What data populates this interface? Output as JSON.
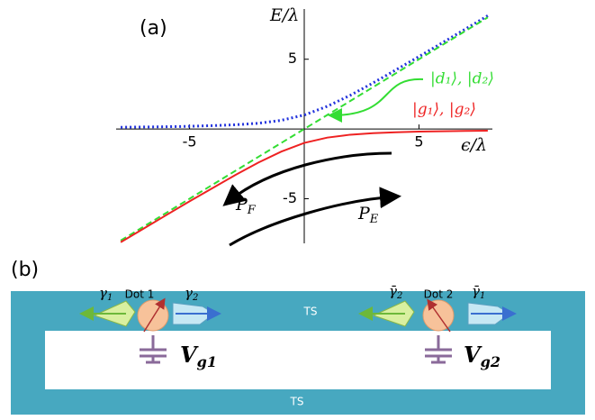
{
  "chart_data": {
    "type": "line",
    "panel_label": "(a)",
    "x_label": "ϵ/λ",
    "y_label": "E/λ",
    "x": [
      -8,
      -7,
      -6,
      -5,
      -4,
      -3,
      -2,
      -1,
      0,
      1,
      2,
      3,
      4,
      5,
      6,
      7,
      8
    ],
    "series": [
      {
        "color": "#2233dd",
        "style": "dotted",
        "values": [
          0.12,
          0.14,
          0.16,
          0.19,
          0.24,
          0.3,
          0.41,
          0.62,
          1,
          1.62,
          2.41,
          3.3,
          4.24,
          5.19,
          6.16,
          7.14,
          8.12
        ]
      },
      {
        "name": "|d₁⟩, |d₂⟩",
        "color": "#33dd33",
        "style": "dashed",
        "values": [
          -8,
          -7,
          -6,
          -5,
          -4,
          -3,
          -2,
          -1,
          0,
          1,
          2,
          3,
          4,
          5,
          6,
          7,
          8
        ]
      },
      {
        "name": "|g₁⟩, |g₂⟩",
        "color": "#ee2222",
        "style": "solid",
        "values": [
          -8.12,
          -7.14,
          -6.16,
          -5.19,
          -4.24,
          -3.3,
          -2.41,
          -1.62,
          -1,
          -0.62,
          -0.41,
          -0.3,
          -0.24,
          -0.19,
          -0.16,
          -0.14,
          -0.12
        ]
      }
    ],
    "annotations": [
      {
        "text": "P",
        "sub": "F"
      },
      {
        "text": "P",
        "sub": "E"
      }
    ],
    "xlim": [
      -8.2,
      8.2
    ],
    "ylim": [
      -8.2,
      8.6
    ],
    "xticks": [
      -5,
      5
    ],
    "yticks": [
      -5,
      5
    ]
  },
  "diagram": {
    "panel_label": "(b)",
    "dot1": "Dot 1",
    "dot2": "Dot 2",
    "gamma1": {
      "text": "γ",
      "sub": "1"
    },
    "gamma2": {
      "text": "γ",
      "sub": "2"
    },
    "gamma2_bar": {
      "text": "γ̄",
      "sub": "2"
    },
    "gamma1_bar": {
      "text": "γ̄",
      "sub": "1"
    },
    "ts_top": "TS",
    "ts_bottom": "TS",
    "gate1": {
      "text": "V",
      "sub": "g1"
    },
    "gate2": {
      "text": "V",
      "sub": "g2"
    }
  }
}
